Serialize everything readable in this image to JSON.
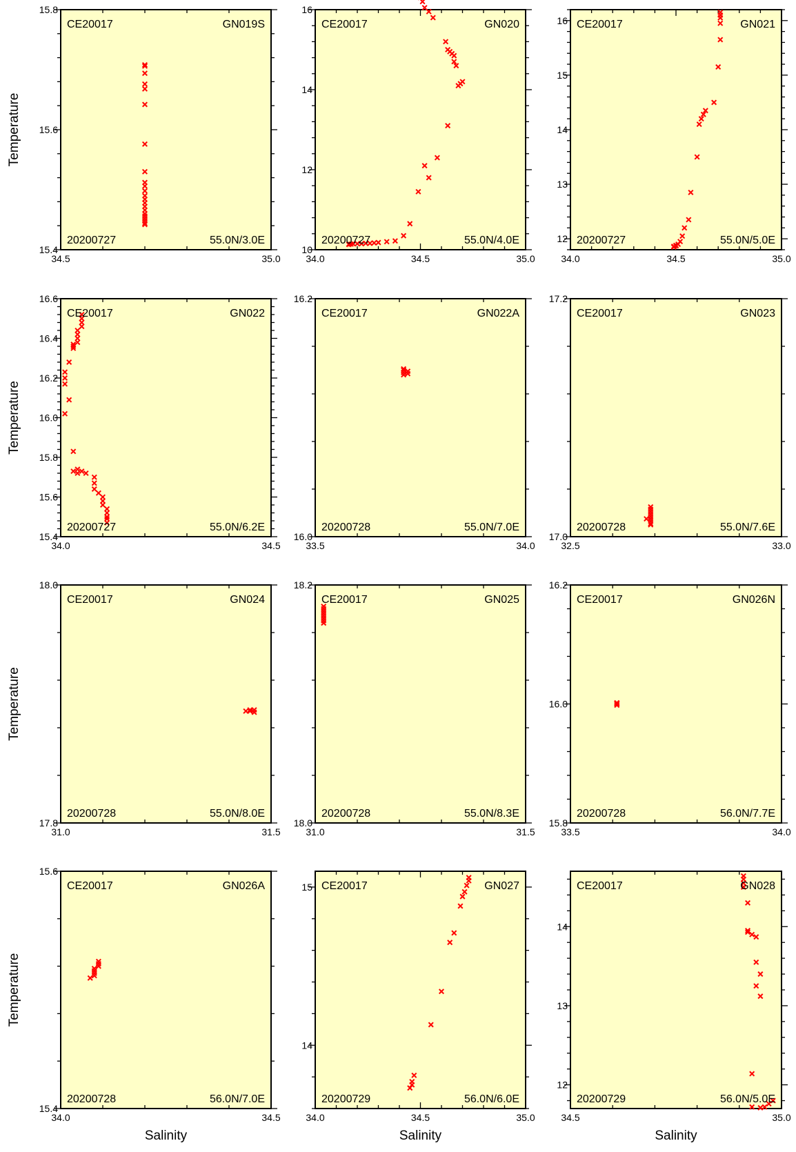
{
  "chart_data": [
    {
      "type": "scatter",
      "cruise": "CE20017",
      "station": "GN019S",
      "date": "20200727",
      "position": "55.0N/3.0E",
      "xlabel": "",
      "ylabel": "Temperature",
      "xlim": [
        34.5,
        35.0
      ],
      "ylim": [
        15.4,
        15.8
      ],
      "xticks": [
        34.5,
        35.0
      ],
      "yticks": [
        15.4,
        15.6,
        15.8
      ],
      "x": [
        34.7,
        34.7,
        34.7,
        34.7,
        34.7,
        34.7,
        34.7,
        34.7,
        34.7,
        34.7,
        34.7,
        34.7,
        34.7,
        34.7,
        34.7,
        34.7,
        34.7,
        34.7,
        34.7,
        34.7,
        34.7,
        34.7
      ],
      "y": [
        15.708,
        15.706,
        15.694,
        15.676,
        15.668,
        15.642,
        15.576,
        15.53,
        15.512,
        15.506,
        15.498,
        15.49,
        15.484,
        15.478,
        15.472,
        15.466,
        15.46,
        15.456,
        15.452,
        15.448,
        15.444,
        15.442
      ]
    },
    {
      "type": "scatter",
      "cruise": "CE20017",
      "station": "GN020",
      "date": "20200727",
      "position": "55.0N/4.0E",
      "xlabel": "",
      "ylabel": "",
      "xlim": [
        34.0,
        35.0
      ],
      "ylim": [
        10.0,
        16.0
      ],
      "xticks": [
        34.0,
        34.5,
        35.0
      ],
      "yticks": [
        10,
        12,
        14,
        16
      ],
      "x": [
        34.49,
        34.5,
        34.51,
        34.52,
        34.54,
        34.56,
        34.62,
        34.63,
        34.64,
        34.65,
        34.66,
        34.66,
        34.67,
        34.7,
        34.69,
        34.68,
        34.63,
        34.58,
        34.54,
        34.52,
        34.49,
        34.45,
        34.42,
        34.38,
        34.34,
        34.3,
        34.28,
        34.26,
        34.24,
        34.22,
        34.2,
        34.18,
        34.17,
        34.16,
        34.16
      ],
      "y": [
        16.35,
        16.3,
        16.2,
        16.05,
        15.95,
        15.8,
        15.2,
        15.0,
        14.95,
        14.9,
        14.85,
        14.7,
        14.6,
        14.2,
        14.15,
        14.1,
        13.1,
        12.3,
        11.8,
        12.1,
        11.45,
        10.65,
        10.35,
        10.22,
        10.2,
        10.18,
        10.17,
        10.16,
        10.16,
        10.15,
        10.15,
        10.15,
        10.14,
        10.14,
        10.13
      ]
    },
    {
      "type": "scatter",
      "cruise": "CE20017",
      "station": "GN021",
      "date": "20200727",
      "position": "55.0N/5.0E",
      "xlabel": "",
      "ylabel": "",
      "xlim": [
        34.0,
        35.0
      ],
      "ylim": [
        11.8,
        16.2
      ],
      "xticks": [
        34.0,
        34.5,
        35.0
      ],
      "yticks": [
        12,
        13,
        14,
        15,
        16
      ],
      "x": [
        34.71,
        34.71,
        34.71,
        34.71,
        34.71,
        34.7,
        34.68,
        34.64,
        34.63,
        34.62,
        34.61,
        34.6,
        34.57,
        34.56,
        34.54,
        34.53,
        34.52,
        34.51,
        34.5,
        34.5,
        34.49,
        34.49,
        34.49,
        34.49
      ],
      "y": [
        16.15,
        16.1,
        16.05,
        15.95,
        15.65,
        15.15,
        14.5,
        14.35,
        14.28,
        14.2,
        14.1,
        13.5,
        12.85,
        12.35,
        12.2,
        12.05,
        11.95,
        11.9,
        11.88,
        11.87,
        11.86,
        11.86,
        11.85,
        11.85
      ],
      "x_note": ""
    },
    {
      "type": "scatter",
      "cruise": "CE20017",
      "station": "GN022",
      "date": "20200727",
      "position": "55.0N/6.2E",
      "xlabel": "",
      "ylabel": "Temperature",
      "xlim": [
        34.0,
        34.5
      ],
      "ylim": [
        15.4,
        16.6
      ],
      "xticks": [
        34.0,
        34.5
      ],
      "yticks": [
        15.4,
        15.6,
        15.8,
        16.0,
        16.2,
        16.4,
        16.6
      ],
      "x": [
        34.05,
        34.05,
        34.05,
        34.05,
        34.04,
        34.04,
        34.04,
        34.04,
        34.03,
        34.03,
        34.03,
        34.02,
        34.01,
        34.01,
        34.01,
        34.02,
        34.01,
        34.03,
        34.04,
        34.03,
        34.04,
        34.05,
        34.06,
        34.08,
        34.08,
        34.08,
        34.09,
        34.1,
        34.1,
        34.1,
        34.11,
        34.11,
        34.11,
        34.11,
        34.11
      ],
      "y": [
        16.52,
        16.5,
        16.48,
        16.46,
        16.44,
        16.42,
        16.4,
        16.38,
        16.37,
        16.36,
        16.35,
        16.28,
        16.23,
        16.2,
        16.17,
        16.09,
        16.02,
        15.83,
        15.74,
        15.73,
        15.72,
        15.73,
        15.72,
        15.7,
        15.67,
        15.64,
        15.62,
        15.6,
        15.58,
        15.56,
        15.54,
        15.52,
        15.5,
        15.49,
        15.47
      ]
    },
    {
      "type": "scatter",
      "cruise": "CE20017",
      "station": "GN022A",
      "date": "20200728",
      "position": "55.0N/7.0E",
      "xlabel": "",
      "ylabel": "",
      "xlim": [
        33.5,
        34.0
      ],
      "ylim": [
        16.0,
        16.2
      ],
      "xticks": [
        33.5,
        34.0
      ],
      "yticks": [
        16.0,
        16.2
      ],
      "x": [
        33.71,
        33.71,
        33.71,
        33.72,
        33.72,
        33.71
      ],
      "y": [
        16.138,
        16.14,
        16.136,
        16.139,
        16.137,
        16.141
      ]
    },
    {
      "type": "scatter",
      "cruise": "CE20017",
      "station": "GN023",
      "date": "20200728",
      "position": "55.0N/7.6E",
      "xlabel": "",
      "ylabel": "",
      "xlim": [
        32.5,
        33.0
      ],
      "ylim": [
        17.0,
        17.2
      ],
      "xticks": [
        32.5,
        33.0
      ],
      "yticks": [
        17.0,
        17.2
      ],
      "x": [
        32.69,
        32.69,
        32.69,
        32.69,
        32.69,
        32.69,
        32.69,
        32.69,
        32.69,
        32.68
      ],
      "y": [
        17.025,
        17.023,
        17.021,
        17.019,
        17.017,
        17.015,
        17.013,
        17.011,
        17.01,
        17.015
      ]
    },
    {
      "type": "scatter",
      "cruise": "CE20017",
      "station": "GN024",
      "date": "20200728",
      "position": "55.0N/8.0E",
      "xlabel": "",
      "ylabel": "Temperature",
      "xlim": [
        31.0,
        31.5
      ],
      "ylim": [
        17.8,
        18.0
      ],
      "xticks": [
        31.0,
        31.5
      ],
      "yticks": [
        17.8,
        18.0
      ],
      "x": [
        31.44,
        31.45,
        31.46,
        31.46,
        31.45
      ],
      "y": [
        17.894,
        17.894,
        17.895,
        17.893,
        17.895
      ]
    },
    {
      "type": "scatter",
      "cruise": "CE20017",
      "station": "GN025",
      "date": "20200728",
      "position": "55.0N/8.3E",
      "xlabel": "",
      "ylabel": "",
      "xlim": [
        31.0,
        31.5
      ],
      "ylim": [
        18.0,
        18.2
      ],
      "xticks": [
        31.0,
        31.5
      ],
      "yticks": [
        18.0,
        18.2
      ],
      "x": [
        31.02,
        31.02,
        31.02,
        31.02,
        31.02,
        31.02,
        31.02,
        31.02
      ],
      "y": [
        18.182,
        18.18,
        18.178,
        18.176,
        18.174,
        18.172,
        18.17,
        18.168
      ]
    },
    {
      "type": "scatter",
      "cruise": "CE20017",
      "station": "GN026N",
      "date": "20200728",
      "position": "56.0N/7.7E",
      "xlabel": "",
      "ylabel": "",
      "xlim": [
        33.5,
        34.0
      ],
      "ylim": [
        15.8,
        16.2
      ],
      "xticks": [
        33.5,
        34.0
      ],
      "yticks": [
        15.8,
        16.0,
        16.2
      ],
      "x": [
        33.61,
        33.61,
        33.61,
        33.61
      ],
      "y": [
        16.0,
        16.002,
        15.998,
        16.001
      ]
    },
    {
      "type": "scatter",
      "cruise": "CE20017",
      "station": "GN026A",
      "date": "20200728",
      "position": "56.0N/7.0E",
      "xlabel": "Salinity",
      "ylabel": "Temperature",
      "xlim": [
        34.0,
        34.5
      ],
      "ylim": [
        15.4,
        15.6
      ],
      "xticks": [
        34.0,
        34.5
      ],
      "yticks": [
        15.4,
        15.6
      ],
      "x": [
        34.09,
        34.09,
        34.09,
        34.08,
        34.08,
        34.08,
        34.08,
        34.07
      ],
      "y": [
        15.524,
        15.522,
        15.52,
        15.518,
        15.516,
        15.514,
        15.512,
        15.51
      ]
    },
    {
      "type": "scatter",
      "cruise": "CE20017",
      "station": "GN027",
      "date": "20200729",
      "position": "56.0N/6.0E",
      "xlabel": "Salinity",
      "ylabel": "",
      "xlim": [
        34.0,
        35.0
      ],
      "ylim": [
        13.6,
        15.1
      ],
      "xticks": [
        34.0,
        34.5,
        35.0
      ],
      "yticks": [
        14,
        15
      ],
      "x": [
        34.73,
        34.73,
        34.72,
        34.71,
        34.7,
        34.69,
        34.66,
        34.64,
        34.6,
        34.55,
        34.47,
        34.46,
        34.46,
        34.45
      ],
      "y": [
        15.06,
        15.04,
        15.01,
        14.97,
        14.94,
        14.88,
        14.71,
        14.65,
        14.34,
        14.13,
        13.81,
        13.77,
        13.75,
        13.73
      ]
    },
    {
      "type": "scatter",
      "cruise": "CE20017",
      "station": "GN028",
      "date": "20200729",
      "position": "56.0N/5.0E",
      "xlabel": "Salinity",
      "ylabel": "",
      "xlim": [
        34.5,
        35.0
      ],
      "ylim": [
        11.7,
        14.7
      ],
      "xticks": [
        34.5,
        35.0
      ],
      "yticks": [
        12,
        13,
        14
      ],
      "x": [
        34.91,
        34.91,
        34.91,
        34.91,
        34.92,
        34.92,
        34.92,
        34.93,
        34.94,
        34.94,
        34.95,
        34.94,
        34.95,
        34.93,
        34.93,
        34.95,
        34.96,
        34.97,
        34.98
      ],
      "y": [
        14.64,
        14.6,
        14.55,
        14.5,
        14.3,
        13.95,
        13.93,
        13.9,
        13.87,
        13.55,
        13.4,
        13.25,
        13.12,
        12.14,
        11.72,
        11.71,
        11.72,
        11.76,
        11.8
      ]
    }
  ],
  "marker_color": "#ff0000",
  "panel_color": "#ffffc8"
}
